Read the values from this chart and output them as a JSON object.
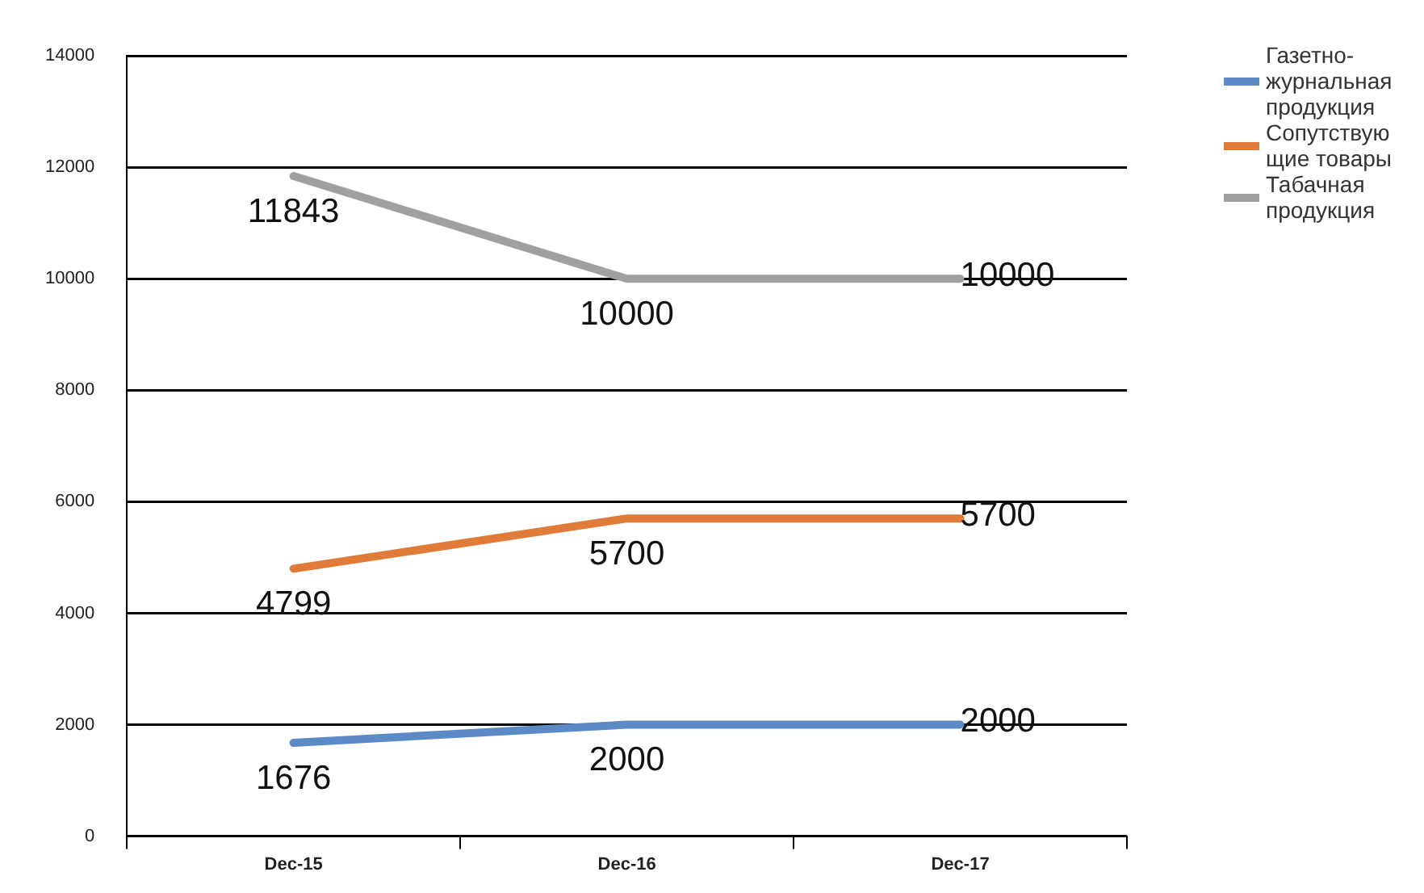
{
  "chart_data": {
    "type": "line",
    "categories": [
      "Dec-15",
      "Dec-16",
      "Dec-17"
    ],
    "series": [
      {
        "name": "Газетно-журнальная продукция",
        "color": "#5b8ac6",
        "values": [
          1676,
          2000,
          2000
        ]
      },
      {
        "name": "Сопутствующие товары",
        "color": "#e07b39",
        "values": [
          4799,
          5700,
          5700
        ]
      },
      {
        "name": "Табачная продукция",
        "color": "#a0a0a0",
        "values": [
          11843,
          10000,
          10000
        ]
      }
    ],
    "ylim": [
      0,
      14000
    ],
    "yticks": [
      0,
      2000,
      4000,
      6000,
      8000,
      10000,
      12000,
      14000
    ],
    "grid": "y",
    "legend": "right",
    "marker": "none",
    "line_style": "solid",
    "data_labels": true
  }
}
